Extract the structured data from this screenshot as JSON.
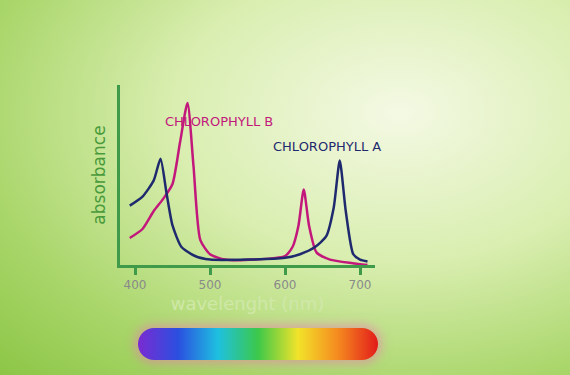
{
  "chart_data": {
    "type": "line",
    "x_label": "wavelenght (nm)",
    "y_label": "absorbance",
    "xlim": [
      380,
      720
    ],
    "xticks": [
      400,
      500,
      600,
      700
    ],
    "ylim": [
      0,
      1
    ],
    "tick_labels": "x",
    "grid": false,
    "series": [
      {
        "name": "CHLOROPHYLL B",
        "color": "#c2187c",
        "x": [
          393,
          410,
          425,
          438,
          450,
          460,
          470,
          478,
          487,
          500,
          520,
          560,
          600,
          610,
          618,
          625,
          632,
          642,
          660,
          690,
          710
        ],
        "values": [
          0.15,
          0.2,
          0.3,
          0.37,
          0.45,
          0.68,
          0.9,
          0.55,
          0.14,
          0.06,
          0.03,
          0.03,
          0.05,
          0.1,
          0.22,
          0.42,
          0.22,
          0.07,
          0.03,
          0.01,
          0.0
        ]
      },
      {
        "name": "CHLOROPHYLL A",
        "color": "#1f2a6e",
        "x": [
          393,
          410,
          425,
          434,
          442,
          450,
          462,
          480,
          500,
          550,
          600,
          620,
          640,
          655,
          665,
          673,
          681,
          691,
          700,
          710
        ],
        "values": [
          0.33,
          0.38,
          0.47,
          0.59,
          0.4,
          0.22,
          0.1,
          0.05,
          0.03,
          0.03,
          0.04,
          0.06,
          0.1,
          0.16,
          0.32,
          0.58,
          0.3,
          0.06,
          0.03,
          0.02
        ]
      }
    ]
  }
}
